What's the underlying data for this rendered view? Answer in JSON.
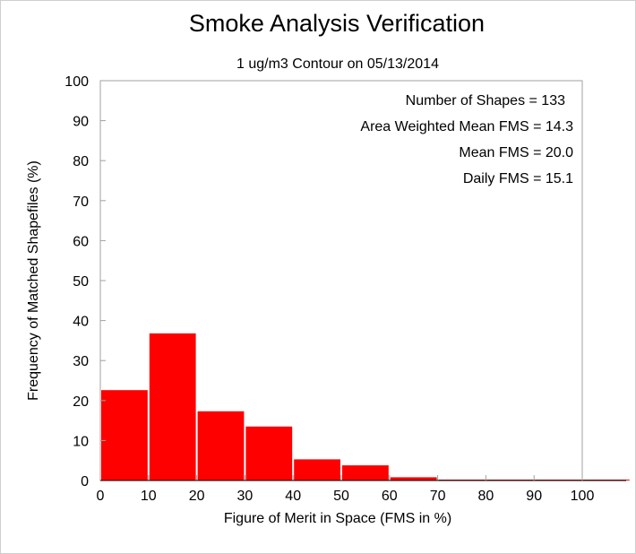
{
  "chart_data": {
    "type": "bar",
    "title": "Smoke Analysis Verification",
    "subtitle": "1 ug/m3 Contour on 05/13/2014",
    "xlabel": "Figure of Merit in Space (FMS in %)",
    "ylabel": "Frequency of Matched Shapefiles (%)",
    "xlim": [
      0,
      110
    ],
    "ylim": [
      0,
      100
    ],
    "x_ticks": [
      0,
      10,
      20,
      30,
      40,
      50,
      60,
      70,
      80,
      90,
      100
    ],
    "y_ticks": [
      0,
      10,
      20,
      30,
      40,
      50,
      60,
      70,
      80,
      90,
      100
    ],
    "bin_width": 10,
    "bins": [
      0,
      10,
      20,
      30,
      40,
      50,
      60,
      70,
      80,
      90,
      100
    ],
    "values": [
      22.6,
      36.8,
      17.3,
      13.5,
      5.3,
      3.8,
      0.8,
      0,
      0,
      0,
      0
    ],
    "bar_color": "#ff0000",
    "grid": false,
    "annotations": [
      "Number of Shapes = 133",
      "Area Weighted Mean FMS = 14.3",
      "Mean FMS = 20.0",
      "Daily FMS = 15.1"
    ]
  }
}
